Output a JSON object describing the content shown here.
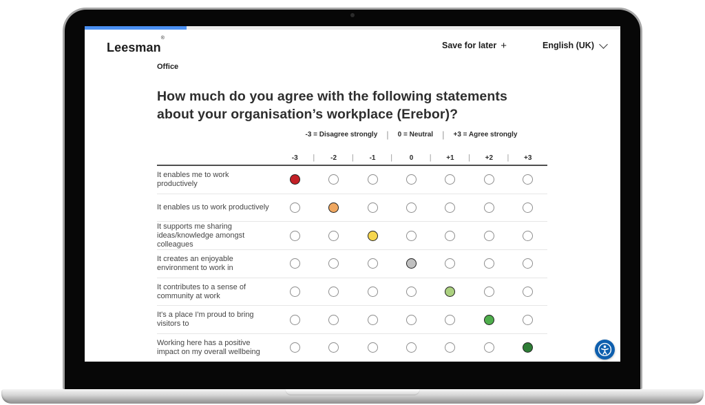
{
  "header": {
    "logo": "Leesman",
    "logo_mark": "®",
    "save_for_later": "Save for later",
    "save_icon": "+",
    "language": "English (UK)"
  },
  "progress": {
    "percent": 19
  },
  "survey": {
    "section": "Office",
    "question": "How much do you agree with the following statements about your organisation’s workplace (Erebor)?",
    "legend": [
      "-3 = Disagree strongly",
      "0 = Neutral",
      "+3 = Agree strongly"
    ],
    "legend_separator": "|",
    "scale": [
      "-3",
      "-2",
      "-1",
      "0",
      "+1",
      "+2",
      "+3"
    ],
    "rows": [
      {
        "statement": "It enables me to work productively",
        "selected": 0,
        "color": "#c32026"
      },
      {
        "statement": "It enables us to work productively",
        "selected": 1,
        "color": "#efa760"
      },
      {
        "statement": "It supports me sharing ideas/knowledge amongst colleagues",
        "selected": 2,
        "color": "#f6d64f"
      },
      {
        "statement": "It creates an enjoyable environment to work in",
        "selected": 3,
        "color": "#c0c0c0"
      },
      {
        "statement": "It contributes to a sense of community at work",
        "selected": 4,
        "color": "#abd07f"
      },
      {
        "statement": "It's a place I'm proud to bring visitors to",
        "selected": 5,
        "color": "#4fae4c"
      },
      {
        "statement": "Working here has a positive impact on my overall wellbeing",
        "selected": 6,
        "color": "#2e7d36"
      }
    ]
  },
  "colors": {
    "progress_blue": "#4a90f2",
    "accessibility_blue": "#0e5fae"
  },
  "widgets": {
    "accessibility_button": "accessibility"
  }
}
